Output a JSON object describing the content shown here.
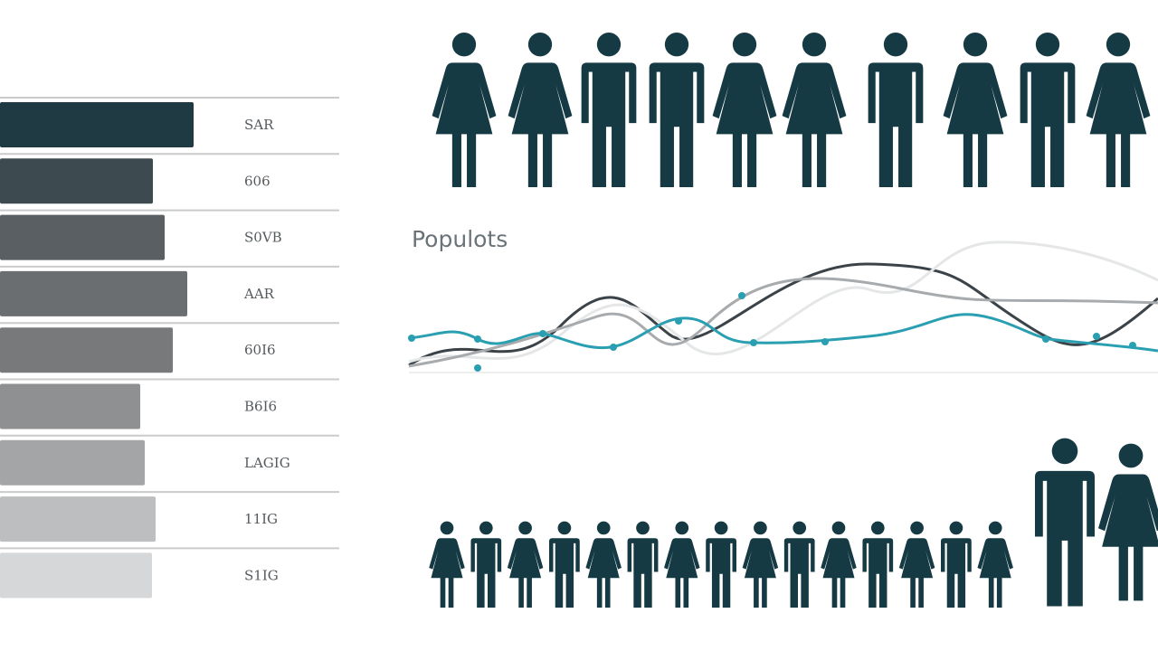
{
  "title": "Populots",
  "bars": {
    "labels": [
      "SAR",
      "606",
      "S0VB",
      "AAR",
      "60I6",
      "B6I6",
      "LAGIG",
      "11IG",
      "S1IG"
    ]
  }
}
